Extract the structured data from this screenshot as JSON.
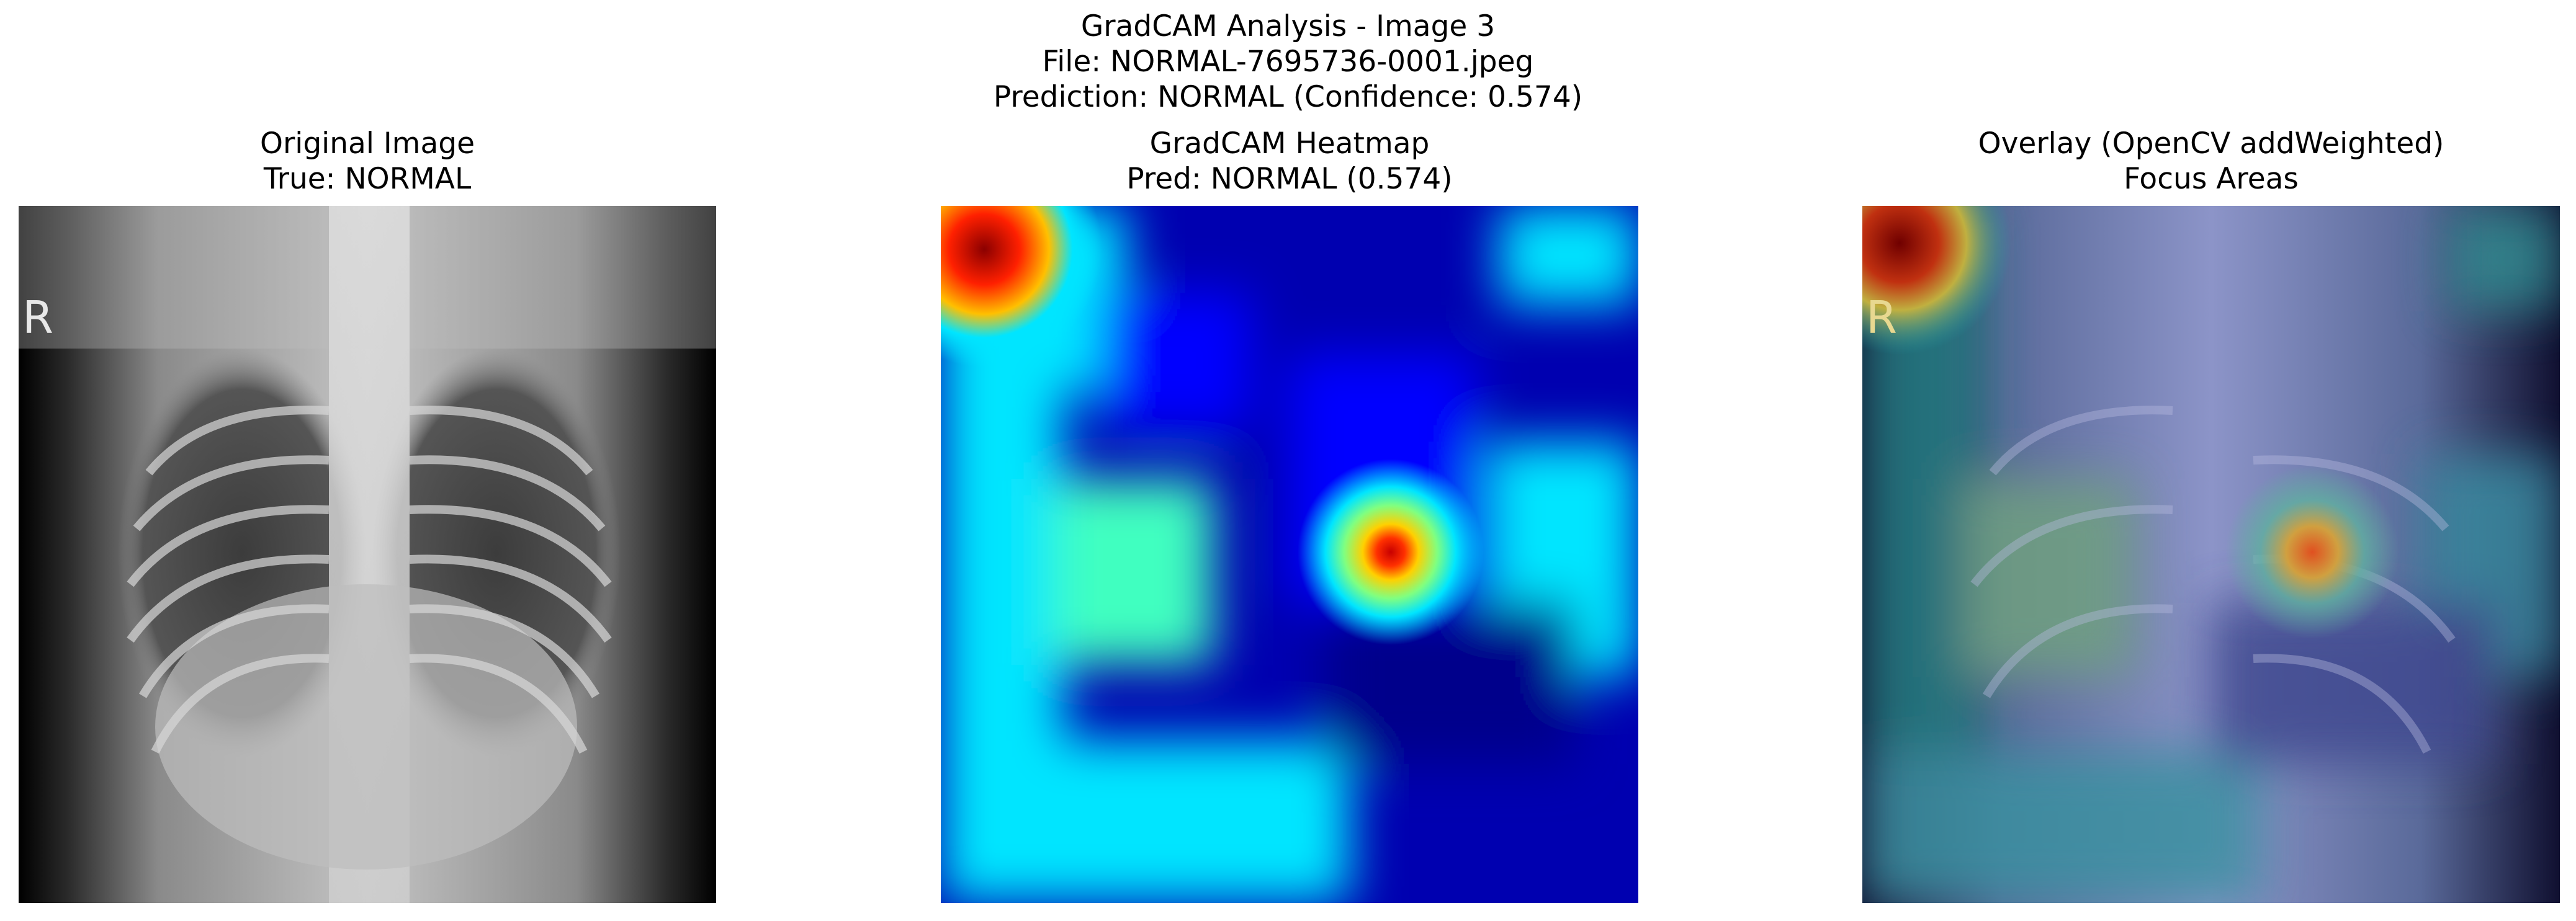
{
  "figure": {
    "title_lines": [
      "GradCAM Analysis - Image 3",
      "File: NORMAL-7695736-0001.jpeg",
      "Prediction: NORMAL (Confidence: 0.574)"
    ]
  },
  "panels": [
    {
      "id": "original",
      "title_lines": [
        "Original Image",
        "True: NORMAL"
      ],
      "image_icon": "chest-xray-image"
    },
    {
      "id": "heatmap",
      "title_lines": [
        "GradCAM Heatmap",
        "Pred: NORMAL (0.574)"
      ],
      "image_icon": "gradcam-heatmap-image",
      "colormap": "jet"
    },
    {
      "id": "overlay",
      "title_lines": [
        "Overlay (OpenCV addWeighted)",
        "Focus Areas"
      ],
      "image_icon": "overlay-image"
    }
  ],
  "xray_marker": "R",
  "colors": {
    "hot": "#ff0000",
    "cold": "#00008b",
    "cyan": "#00e5ff"
  }
}
